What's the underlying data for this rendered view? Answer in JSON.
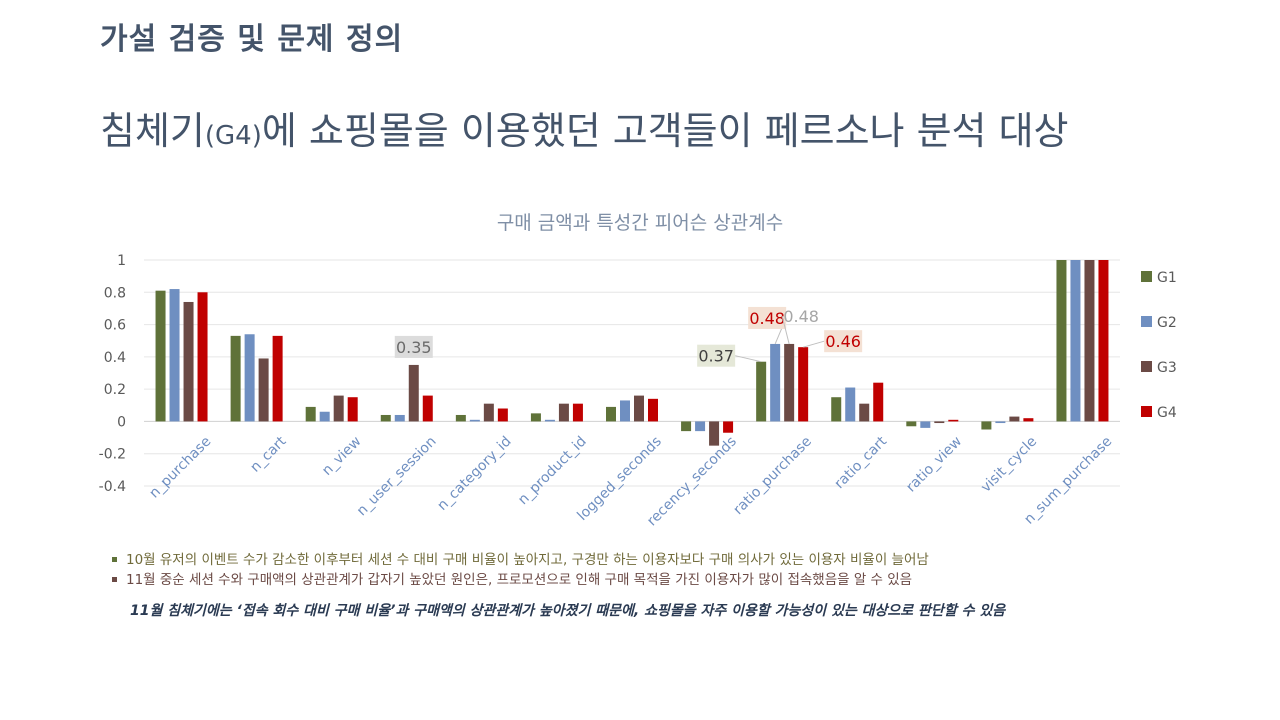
{
  "section_title": "가설 검증 및 문제 정의",
  "headline": {
    "part1": "침체기",
    "part2": "(G4)",
    "part3": "에 쇼핑몰을 이용했던 고객들이 페르소나 분석 대상"
  },
  "chart_data": {
    "type": "bar",
    "title": "구매 금액과 특성간 피어슨 상관계수",
    "xlabel": "",
    "ylabel": "",
    "ylim": [
      -0.4,
      1
    ],
    "yticks": [
      1,
      0.8,
      0.6,
      0.4,
      0.2,
      0,
      -0.2,
      -0.4
    ],
    "ytick_labels": [
      "1",
      "0.8",
      "0.6",
      "0.4",
      "0.2",
      "0",
      "-0.2",
      "-0.4"
    ],
    "grid": true,
    "legend": "right",
    "categories": [
      "n_purchase",
      "n_cart",
      "n_view",
      "n_user_session",
      "n_category_id",
      "n_product_id",
      "logged_seconds",
      "recency_seconds",
      "ratio_purchase",
      "ratio_cart",
      "ratio_view",
      "visit_cycle",
      "n_sum_purchase"
    ],
    "series": [
      {
        "name": "G1",
        "color": "#5f7239",
        "values": [
          0.81,
          0.53,
          0.09,
          0.04,
          0.04,
          0.05,
          0.09,
          -0.06,
          0.37,
          0.15,
          -0.03,
          -0.05,
          1.0
        ]
      },
      {
        "name": "G2",
        "color": "#6f8fc1",
        "values": [
          0.82,
          0.54,
          0.06,
          0.04,
          0.01,
          0.01,
          0.13,
          -0.06,
          0.48,
          0.21,
          -0.04,
          -0.01,
          1.0
        ]
      },
      {
        "name": "G3",
        "color": "#6b4a45",
        "values": [
          0.74,
          0.39,
          0.16,
          0.35,
          0.11,
          0.11,
          0.16,
          -0.15,
          0.48,
          0.11,
          -0.01,
          0.03,
          1.0
        ]
      },
      {
        "name": "G4",
        "color": "#c00000",
        "values": [
          0.8,
          0.53,
          0.15,
          0.16,
          0.08,
          0.11,
          0.14,
          -0.07,
          0.46,
          0.24,
          0.01,
          0.02,
          1.0
        ]
      }
    ],
    "data_labels": [
      {
        "category": "n_user_session",
        "series": "G3",
        "text": "0.35",
        "bg": "#dcdcdc",
        "color": "#6b6b6b"
      },
      {
        "category": "ratio_purchase",
        "series": "G1",
        "text": "0.37",
        "bg": "#e5e8d8",
        "color": "#3f3f3f"
      },
      {
        "category": "ratio_purchase",
        "series": "G2",
        "text": "0.48",
        "bg": "#f4e1d4",
        "color": "#c00000"
      },
      {
        "category": "ratio_purchase",
        "series": "G3",
        "text": "0.48",
        "bg": "",
        "color": "#a6a6a6"
      },
      {
        "category": "ratio_purchase",
        "series": "G4",
        "text": "0.46",
        "bg": "#f4e1d4",
        "color": "#c00000"
      }
    ]
  },
  "bullets": [
    "10월 유저의 이벤트 수가 감소한 이후부터 세션 수 대비 구매 비율이 높아지고, 구경만 하는 이용자보다 구매 의사가 있는 이용자 비율이 늘어남",
    "11월 중순 세션 수와 구매액의 상관관계가 갑자기 높았던 원인은, 프로모션으로 인해 구매 목적을 가진 이용자가 많이 접속했음을 알 수 있음"
  ],
  "conclusion": "11월 침체기에는 ‘접속 회수 대비 구매 비율’과 구매액의 상관관계가 높아졌기 때문에, 쇼핑몰을 자주 이용할 가능성이 있는 대상으로 판단할 수 있음"
}
